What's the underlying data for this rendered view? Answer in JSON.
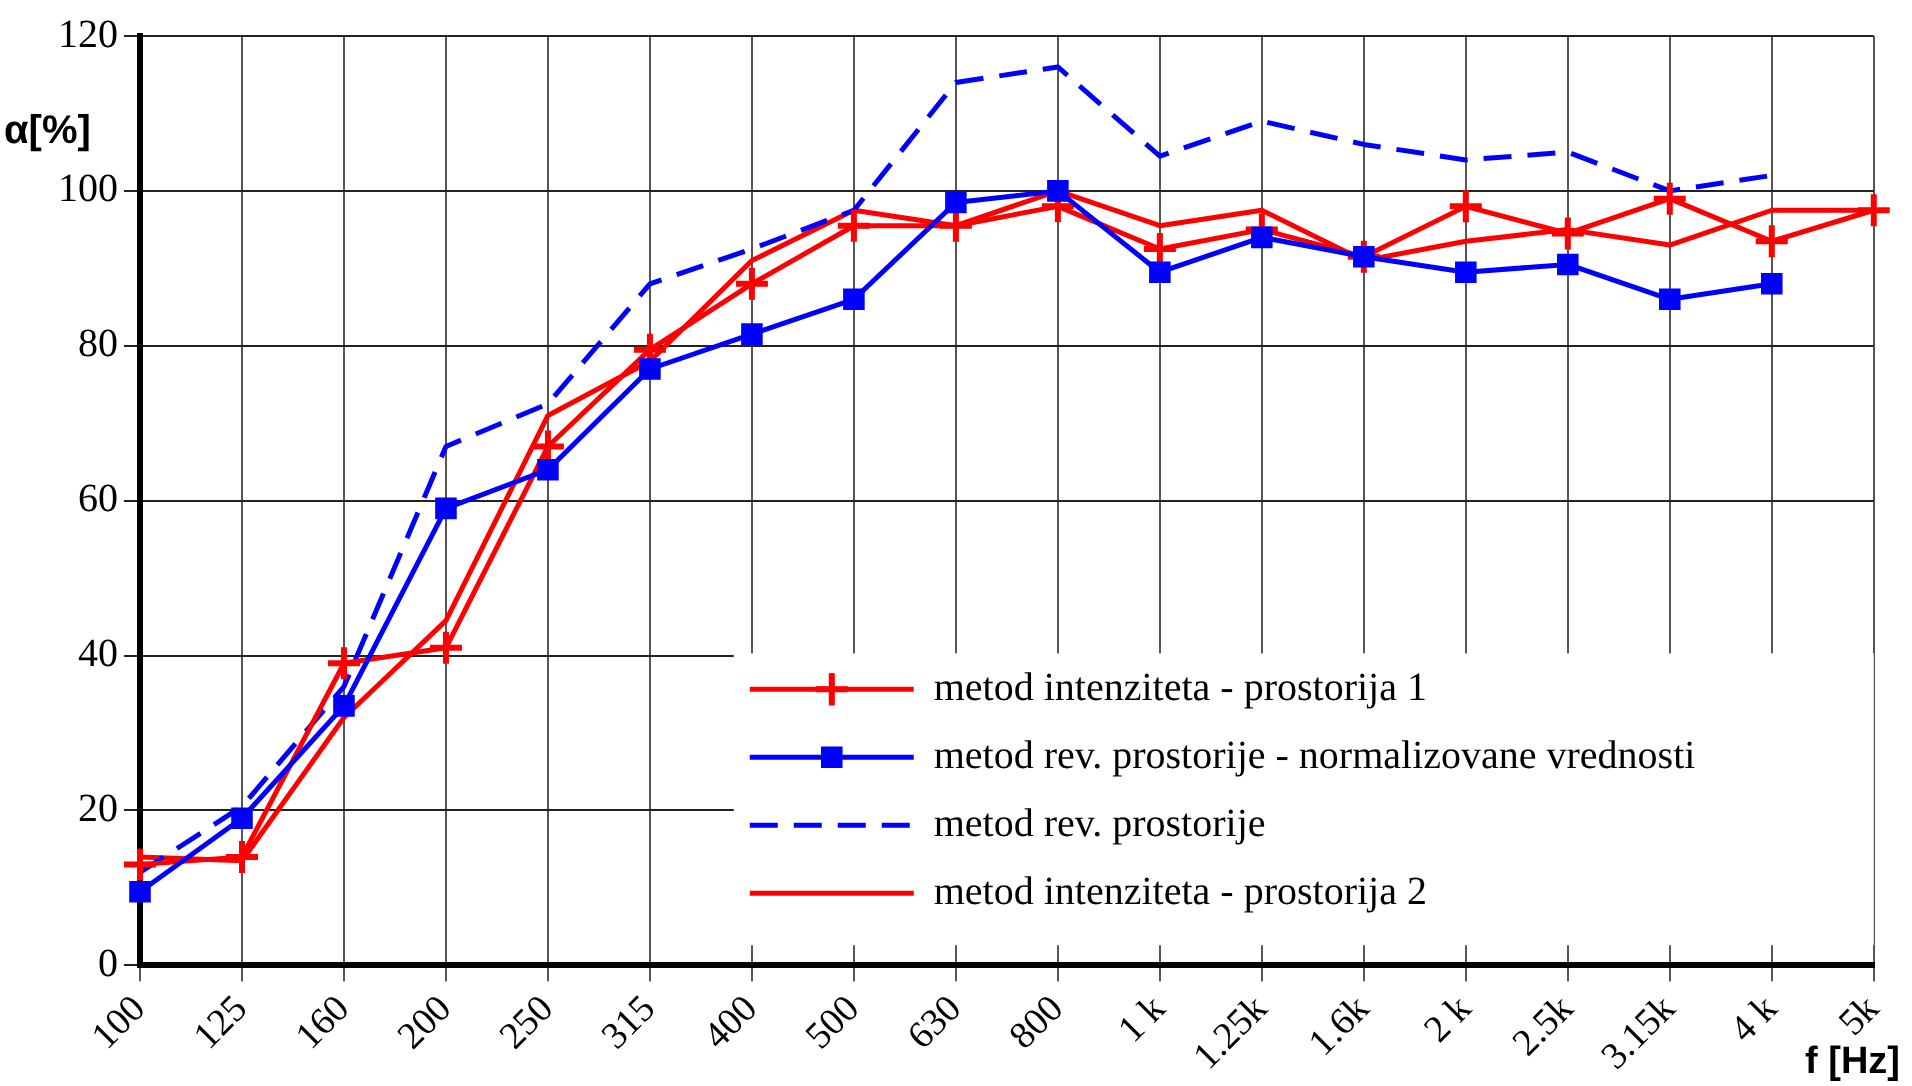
{
  "chart_data": {
    "type": "line",
    "xlabel": "f [Hz]",
    "ylabel": "α[%]",
    "categories": [
      "100",
      "125",
      "160",
      "200",
      "250",
      "315",
      "400",
      "500",
      "630",
      "800",
      "1 k",
      "1.25k",
      "1.6k",
      "2 k",
      "2.5k",
      "3.15k",
      "4 k",
      "5k"
    ],
    "ylim": [
      0,
      120
    ],
    "yticks": [
      0,
      20,
      40,
      60,
      80,
      100,
      120
    ],
    "grid": true,
    "legend": "bottom right",
    "series": [
      {
        "name": "metod intenziteta - prostorija 1",
        "color": "#ff0000",
        "marker": "cross",
        "line_style": "solid",
        "values": [
          13,
          14,
          39,
          41,
          67,
          79.5,
          88,
          95.5,
          95.5,
          98,
          92.5,
          95,
          91.5,
          98,
          94.5,
          99,
          93.5,
          97.5
        ]
      },
      {
        "name": "metod rev. prostorije - normalizovane vrednosti",
        "color": "#0000ff",
        "marker": "square",
        "line_style": "solid",
        "values": [
          9.5,
          19,
          33.5,
          59,
          64,
          77,
          81.5,
          86,
          98.5,
          100,
          89.5,
          94,
          91.5,
          89.5,
          90.5,
          86,
          88,
          null
        ]
      },
      {
        "name": "metod rev. prostorije",
        "color": "#0000ff",
        "marker": "none",
        "line_style": "dashed",
        "values": [
          12,
          20.5,
          36,
          67,
          72.5,
          88,
          92.5,
          97.5,
          114,
          116,
          104.5,
          109,
          106,
          104,
          105,
          100,
          102,
          null
        ]
      },
      {
        "name": "metod intenziteta - prostorija 2",
        "color": "#ff0000",
        "marker": "none",
        "line_style": "solid",
        "values": [
          14,
          13.5,
          32,
          44.5,
          71,
          78,
          91,
          97.5,
          95.5,
          100,
          95.5,
          97.5,
          91,
          93.5,
          95,
          93,
          97.5,
          97.5
        ]
      }
    ]
  }
}
